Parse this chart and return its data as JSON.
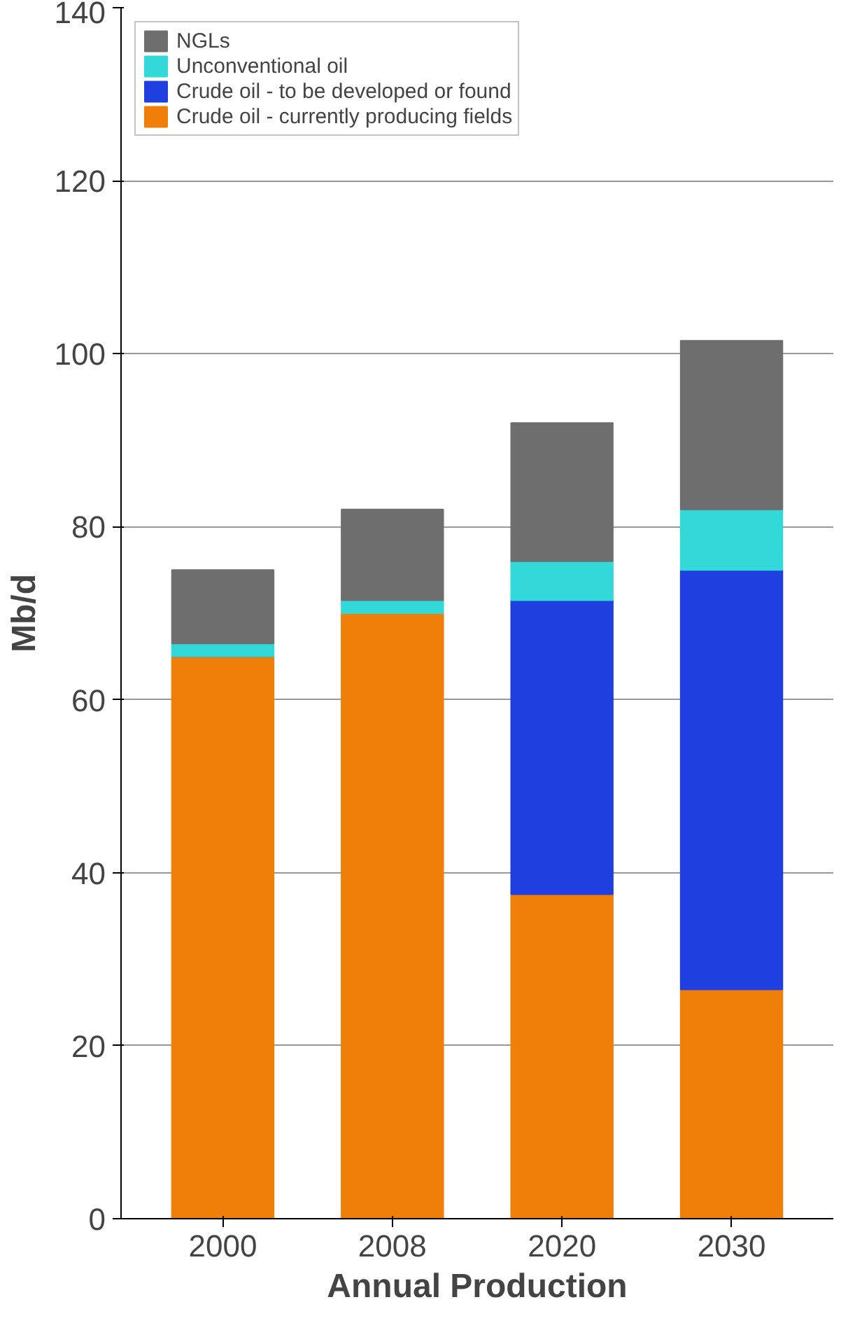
{
  "chart_data": {
    "type": "bar",
    "stacked": true,
    "xlabel": "Annual Production",
    "ylabel": "Mb/d",
    "categories": [
      "2000",
      "2008",
      "2020",
      "2030"
    ],
    "series": [
      {
        "name": "Crude oil - currently producing fields",
        "color": "#f07f09",
        "values": [
          65,
          70,
          37.5,
          26.5
        ]
      },
      {
        "name": "Crude oil - to be developed or found",
        "color": "#1f3fe0",
        "values": [
          0,
          0,
          34,
          48.5
        ]
      },
      {
        "name": "Unconventional oil",
        "color": "#33d9d9",
        "values": [
          1.5,
          1.5,
          4.5,
          7
        ]
      },
      {
        "name": "NGLs",
        "color": "#6e6e6e",
        "values": [
          8.5,
          10.5,
          16,
          19.5
        ]
      }
    ],
    "ylim": [
      0,
      140
    ],
    "yticks": [
      0,
      20,
      40,
      60,
      80,
      100,
      120,
      140
    ],
    "grid": "y",
    "legend": "top left"
  }
}
